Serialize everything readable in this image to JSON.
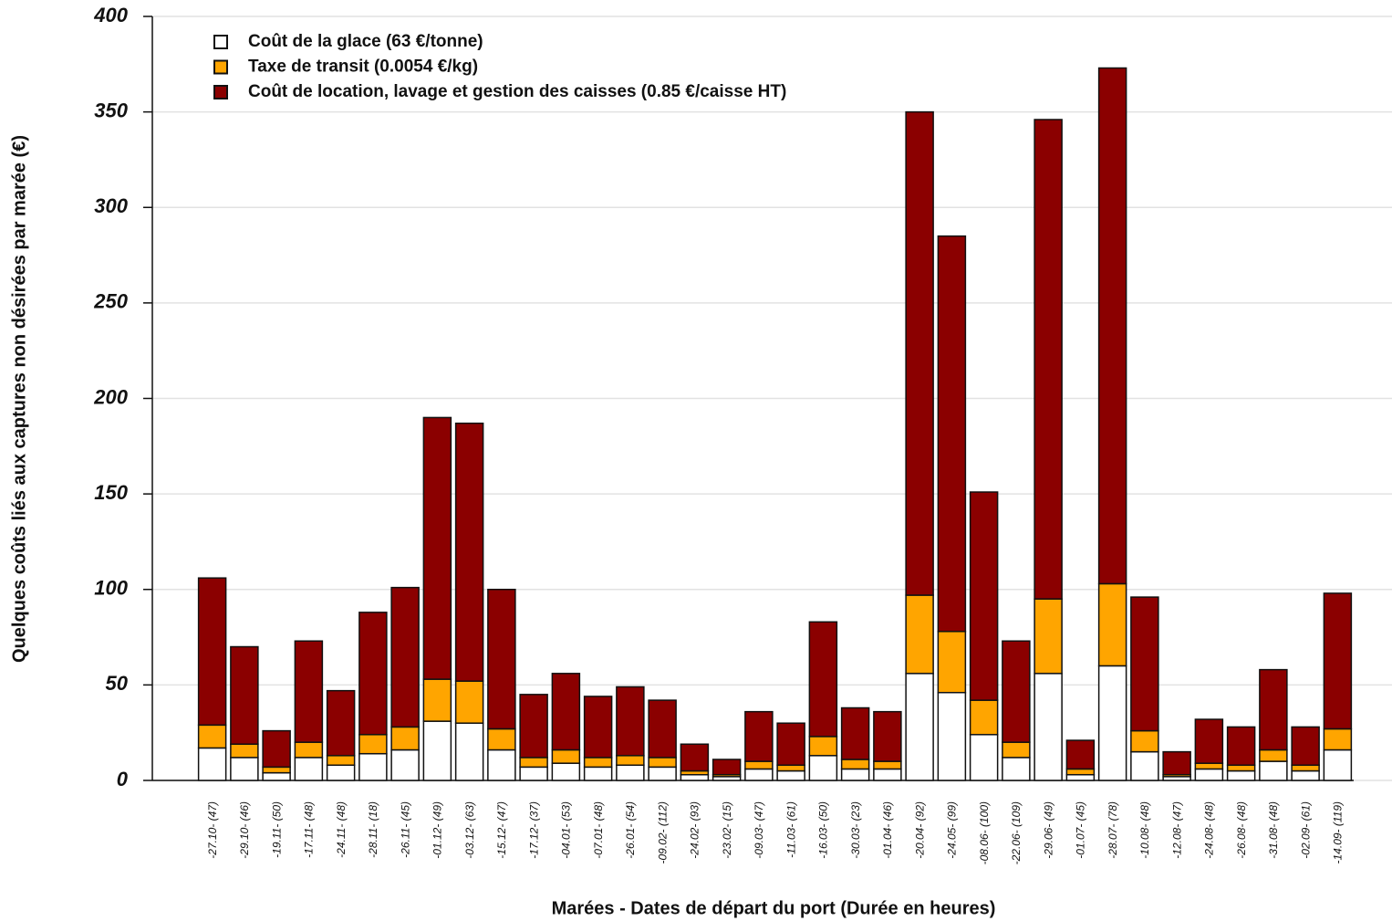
{
  "chart_data": {
    "type": "stacked_bar",
    "x_label": "Marées - Dates de départ du port (Durée en heures)",
    "y_label": "Quelques coûts liés aux captures non désirées par marée (€)",
    "categories": [
      "-27.10- (47)",
      "-29.10- (46)",
      "-19.11- (50)",
      "-17.11- (48)",
      "-24.11- (48)",
      "-28.11- (18)",
      "-26.11- (45)",
      "-01.12- (49)",
      "-03.12- (63)",
      "-15.12- (47)",
      "-17.12- (37)",
      "-04.01- (53)",
      "-07.01- (48)",
      "-26.01- (54)",
      "-09.02- (112)",
      "-24.02- (93)",
      "-23.02- (15)",
      "-09.03- (47)",
      "-11.03- (61)",
      "-16.03- (50)",
      "-30.03- (23)",
      "-01.04- (46)",
      "-20.04- (92)",
      "-24.05- (99)",
      "-08.06- (100)",
      "-22.06- (109)",
      "-29.06- (49)",
      "-01.07- (45)",
      "-28.07- (78)",
      "-10.08- (48)",
      "-12.08- (47)",
      "-24.08- (48)",
      "-26.08- (48)",
      "-31.08- (48)",
      "-02.09- (61)",
      "-14.09- (119)"
    ],
    "series": [
      {
        "name": "Coût de la glace (63 €/tonne)",
        "color": "#ffffff",
        "values": [
          17,
          12,
          4,
          12,
          8,
          14,
          16,
          31,
          30,
          16,
          7,
          9,
          7,
          8,
          7,
          3,
          2,
          6,
          5,
          13,
          6,
          6,
          56,
          46,
          24,
          12,
          56,
          3,
          60,
          15,
          2,
          6,
          5,
          10,
          5,
          16
        ]
      },
      {
        "name": "Taxe de transit (0.0054 €/kg)",
        "color": "#ffa500",
        "values": [
          12,
          7,
          3,
          8,
          5,
          10,
          12,
          22,
          22,
          11,
          5,
          7,
          5,
          5,
          5,
          2,
          1,
          4,
          3,
          10,
          5,
          4,
          41,
          32,
          18,
          8,
          39,
          3,
          43,
          11,
          1,
          3,
          3,
          6,
          3,
          11
        ]
      },
      {
        "name": "Coût de location, lavage et gestion des caisses (0.85 €/caisse HT)",
        "color": "#8b0000",
        "values": [
          77,
          51,
          19,
          53,
          34,
          64,
          73,
          137,
          135,
          73,
          33,
          40,
          32,
          36,
          30,
          14,
          8,
          26,
          22,
          60,
          27,
          26,
          253,
          207,
          109,
          53,
          251,
          15,
          270,
          70,
          12,
          23,
          20,
          42,
          20,
          71
        ]
      }
    ],
    "ylim": [
      0,
      400
    ],
    "yticks": [
      0,
      50,
      100,
      150,
      200,
      250,
      300,
      350,
      400
    ],
    "grid": true,
    "legend": "upper left"
  }
}
